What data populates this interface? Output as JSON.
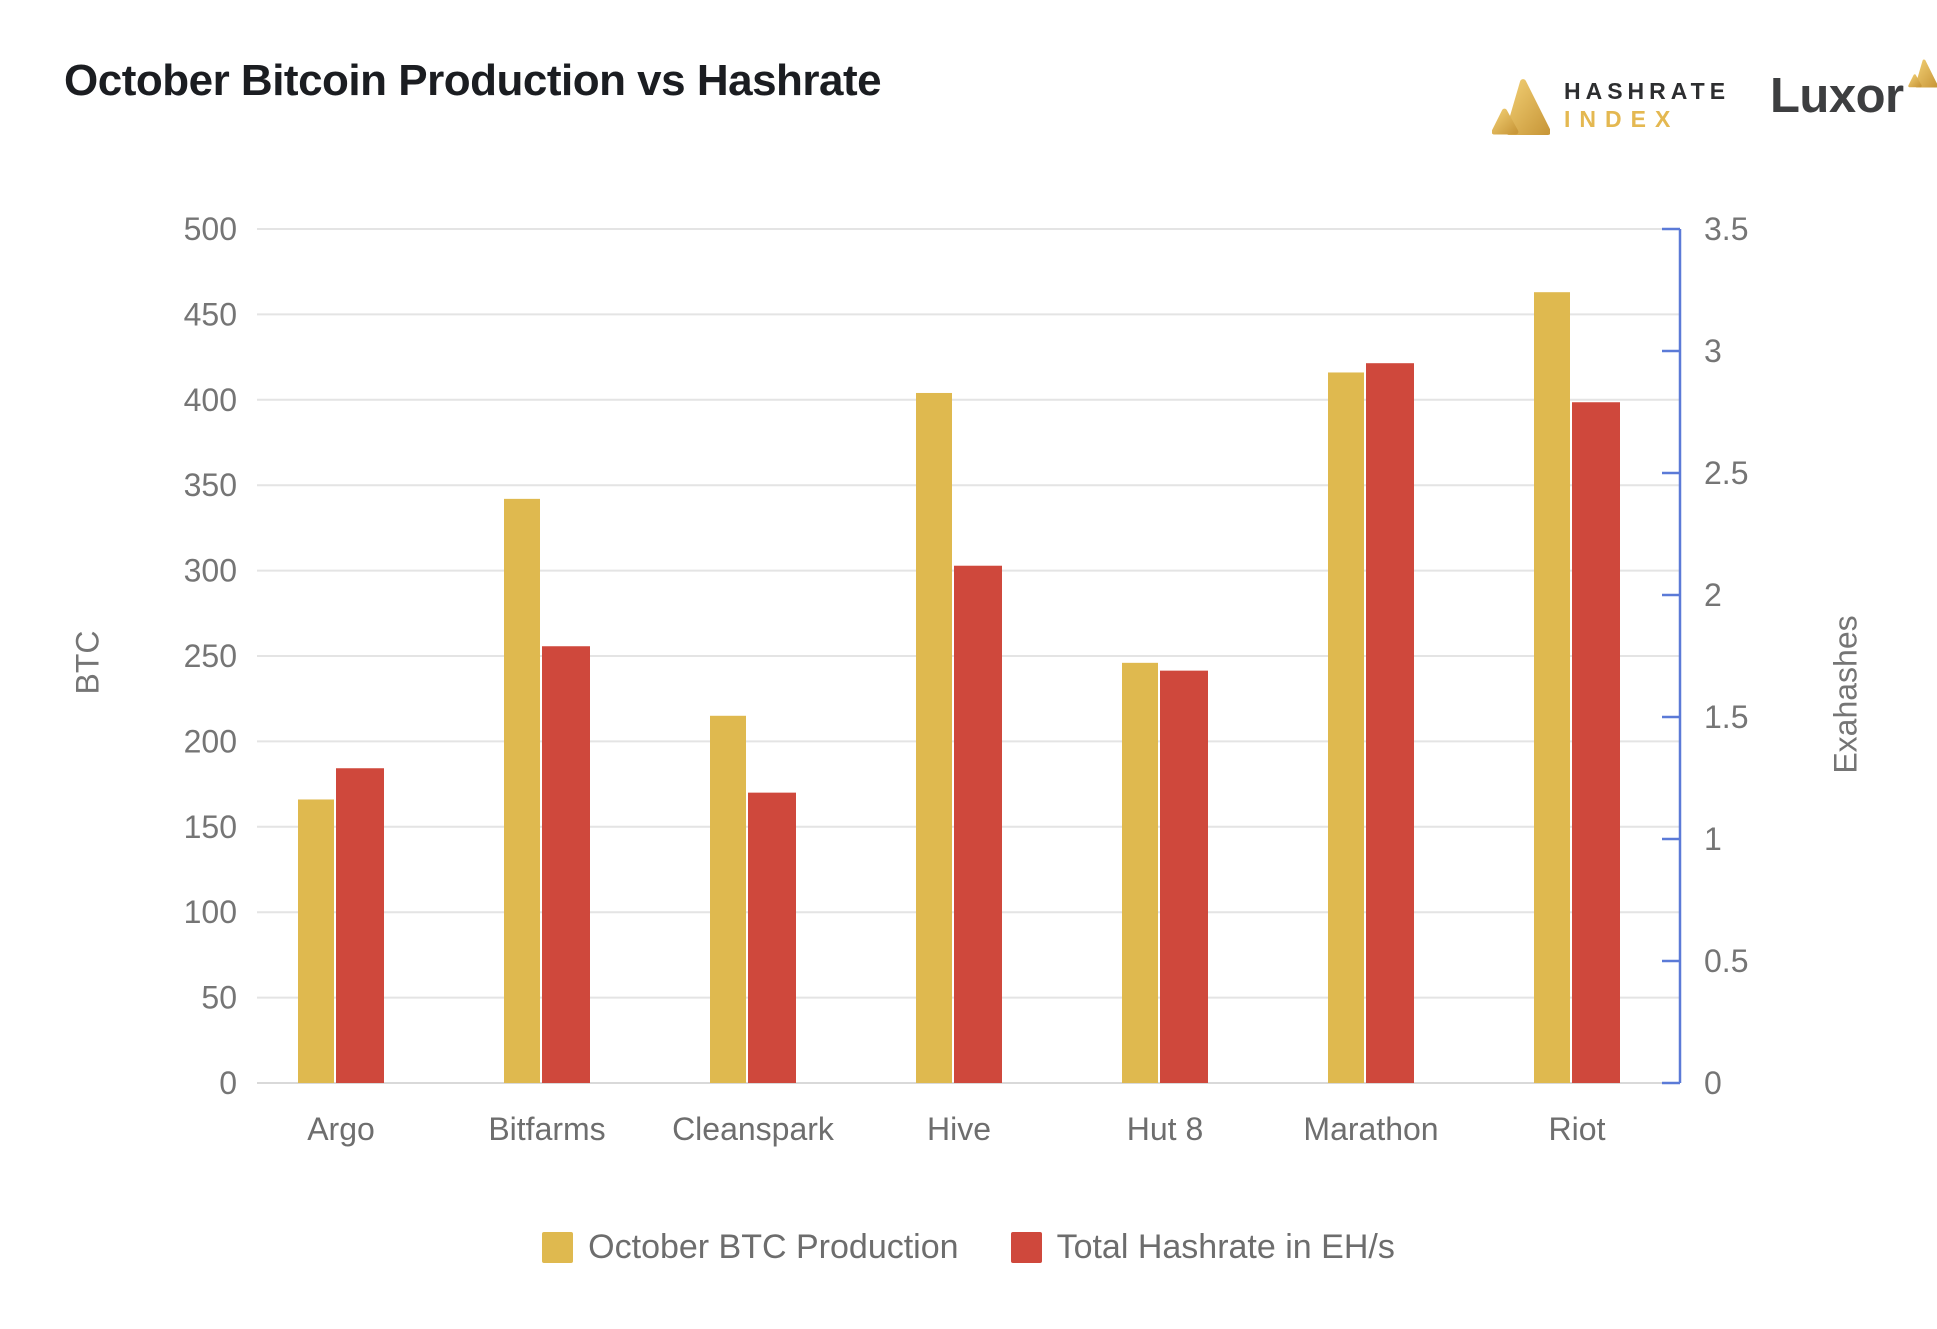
{
  "header": {
    "title": "October Bitcoin Production vs Hashrate",
    "hashrate_index_logo": {
      "line1": "HASHRATE",
      "line2": "INDEX"
    },
    "luxor_logo": "Luxor"
  },
  "chart_data": {
    "type": "bar",
    "title": "October Bitcoin Production vs Hashrate",
    "categories": [
      "Argo",
      "Bitfarms",
      "Cleanspark",
      "Hive",
      "Hut 8",
      "Marathon",
      "Riot"
    ],
    "series": [
      {
        "name": "October BTC Production",
        "axis": "left",
        "color": "#dfb94f",
        "values": [
          166,
          342,
          215,
          404,
          246,
          416,
          463
        ]
      },
      {
        "name": "Total Hashrate in EH/s",
        "axis": "right",
        "color": "#cf483c",
        "values": [
          1.29,
          1.79,
          1.19,
          2.12,
          1.69,
          2.95,
          2.79
        ]
      }
    ],
    "left_axis": {
      "label": "BTC",
      "min": 0,
      "max": 500,
      "step": 50,
      "ticks": [
        "0",
        "50",
        "100",
        "150",
        "200",
        "250",
        "300",
        "350",
        "400",
        "450",
        "500"
      ]
    },
    "right_axis": {
      "label": "Exahashes",
      "min": 0,
      "max": 3.5,
      "step": 0.5,
      "ticks": [
        "0",
        "0.5",
        "1",
        "1.5",
        "2",
        "2.5",
        "3",
        "3.5"
      ]
    },
    "grid": true,
    "legend_position": "bottom"
  },
  "colors": {
    "grid_line": "#e4e4e4",
    "baseline": "#d9d9d9",
    "right_axis": "#5b7ad7",
    "tick_label": "#757575",
    "x_label": "#6e6e6e",
    "gold": "#dfb94f",
    "red": "#cf483c",
    "logo_gold": "#e0b44e"
  }
}
